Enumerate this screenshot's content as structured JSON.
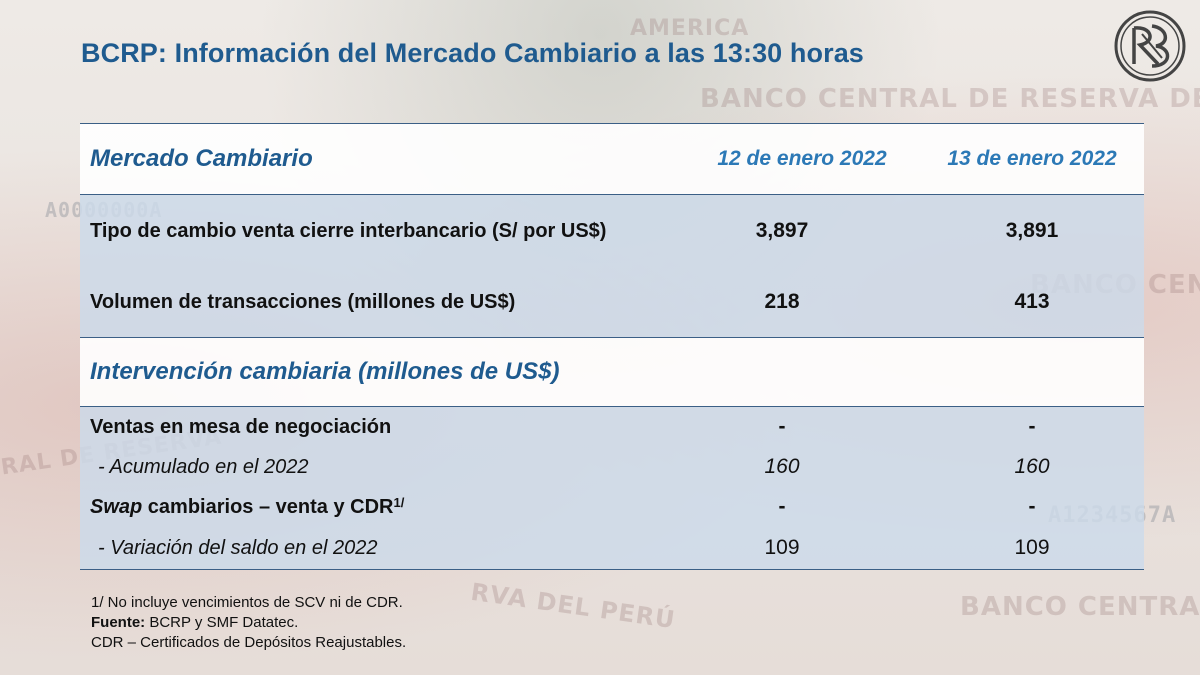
{
  "title": "BCRP: Información del Mercado Cambiario a las 13:30 horas",
  "table": {
    "header": {
      "title": "Mercado Cambiario",
      "col1": "12 de enero 2022",
      "col2": "13 de enero 2022"
    },
    "rows": [
      {
        "label": "Tipo de cambio venta cierre interbancario (S/ por US$)",
        "v1": "3,897",
        "v2": "3,891"
      },
      {
        "label": "Volumen de transacciones (millones de US$)",
        "v1": "218",
        "v2": "413"
      }
    ],
    "section2": {
      "title": "Intervención cambiaria (millones de US$)",
      "ventas": {
        "label": "Ventas en mesa de negociación",
        "v1": "-",
        "v2": "-"
      },
      "acumulado": {
        "label": "-  Acumulado en el 2022",
        "v1": "160",
        "v2": "160"
      },
      "swap": {
        "label_italic": "Swap",
        "label_rest": " cambiarios – venta y CDR",
        "superscript": "1/",
        "v1": "-",
        "v2": "-"
      },
      "variacion": {
        "label": "-  Variación del saldo en el 2022",
        "v1": "109",
        "v2": "109"
      }
    }
  },
  "notes": {
    "note1": "1/ No incluye vencimientos de SCV ni de CDR.",
    "source_label": "Fuente:",
    "source_text": " BCRP y SMF Datatec.",
    "note3": "CDR – Certificados de Depósitos Reajustables."
  },
  "background": {
    "texts": [
      "BANCO CENTRAL DE RESERVA DEL PERÚ",
      "BANCO CENTRAL",
      "BANCO CENTRAL DE",
      "RAL DE RESERVA",
      "RVA DEL PERÚ",
      "A0000000A",
      "A1234567A",
      "AMERICA"
    ]
  },
  "colors": {
    "title": "#1f5b8f",
    "date": "#2c79b6",
    "shade": "#ccdaea",
    "rule": "#3b5f86"
  }
}
